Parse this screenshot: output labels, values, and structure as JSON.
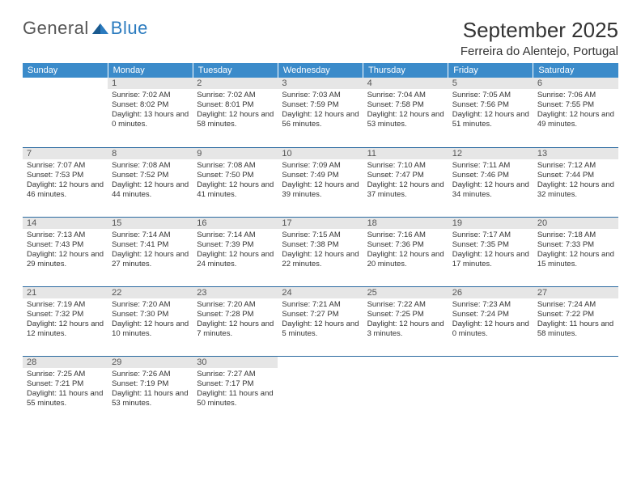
{
  "logo_text_1": "General",
  "logo_text_2": "Blue",
  "logo_triangle_color": "#2b7bbf",
  "month_title": "September 2025",
  "location": "Ferreira do Alentejo, Portugal",
  "dayheaders": {
    "bg_color": "#3b8bca",
    "text_color": "#ffffff",
    "labels": [
      "Sunday",
      "Monday",
      "Tuesday",
      "Wednesday",
      "Thursday",
      "Friday",
      "Saturday"
    ]
  },
  "grid_border_color": "#2b6aa0",
  "daynum_bg_color": "#e6e6e6",
  "days": [
    {
      "num": "1",
      "sunrise": "Sunrise: 7:02 AM",
      "sunset": "Sunset: 8:02 PM",
      "daylight": "Daylight: 13 hours and 0 minutes."
    },
    {
      "num": "2",
      "sunrise": "Sunrise: 7:02 AM",
      "sunset": "Sunset: 8:01 PM",
      "daylight": "Daylight: 12 hours and 58 minutes."
    },
    {
      "num": "3",
      "sunrise": "Sunrise: 7:03 AM",
      "sunset": "Sunset: 7:59 PM",
      "daylight": "Daylight: 12 hours and 56 minutes."
    },
    {
      "num": "4",
      "sunrise": "Sunrise: 7:04 AM",
      "sunset": "Sunset: 7:58 PM",
      "daylight": "Daylight: 12 hours and 53 minutes."
    },
    {
      "num": "5",
      "sunrise": "Sunrise: 7:05 AM",
      "sunset": "Sunset: 7:56 PM",
      "daylight": "Daylight: 12 hours and 51 minutes."
    },
    {
      "num": "6",
      "sunrise": "Sunrise: 7:06 AM",
      "sunset": "Sunset: 7:55 PM",
      "daylight": "Daylight: 12 hours and 49 minutes."
    },
    {
      "num": "7",
      "sunrise": "Sunrise: 7:07 AM",
      "sunset": "Sunset: 7:53 PM",
      "daylight": "Daylight: 12 hours and 46 minutes."
    },
    {
      "num": "8",
      "sunrise": "Sunrise: 7:08 AM",
      "sunset": "Sunset: 7:52 PM",
      "daylight": "Daylight: 12 hours and 44 minutes."
    },
    {
      "num": "9",
      "sunrise": "Sunrise: 7:08 AM",
      "sunset": "Sunset: 7:50 PM",
      "daylight": "Daylight: 12 hours and 41 minutes."
    },
    {
      "num": "10",
      "sunrise": "Sunrise: 7:09 AM",
      "sunset": "Sunset: 7:49 PM",
      "daylight": "Daylight: 12 hours and 39 minutes."
    },
    {
      "num": "11",
      "sunrise": "Sunrise: 7:10 AM",
      "sunset": "Sunset: 7:47 PM",
      "daylight": "Daylight: 12 hours and 37 minutes."
    },
    {
      "num": "12",
      "sunrise": "Sunrise: 7:11 AM",
      "sunset": "Sunset: 7:46 PM",
      "daylight": "Daylight: 12 hours and 34 minutes."
    },
    {
      "num": "13",
      "sunrise": "Sunrise: 7:12 AM",
      "sunset": "Sunset: 7:44 PM",
      "daylight": "Daylight: 12 hours and 32 minutes."
    },
    {
      "num": "14",
      "sunrise": "Sunrise: 7:13 AM",
      "sunset": "Sunset: 7:43 PM",
      "daylight": "Daylight: 12 hours and 29 minutes."
    },
    {
      "num": "15",
      "sunrise": "Sunrise: 7:14 AM",
      "sunset": "Sunset: 7:41 PM",
      "daylight": "Daylight: 12 hours and 27 minutes."
    },
    {
      "num": "16",
      "sunrise": "Sunrise: 7:14 AM",
      "sunset": "Sunset: 7:39 PM",
      "daylight": "Daylight: 12 hours and 24 minutes."
    },
    {
      "num": "17",
      "sunrise": "Sunrise: 7:15 AM",
      "sunset": "Sunset: 7:38 PM",
      "daylight": "Daylight: 12 hours and 22 minutes."
    },
    {
      "num": "18",
      "sunrise": "Sunrise: 7:16 AM",
      "sunset": "Sunset: 7:36 PM",
      "daylight": "Daylight: 12 hours and 20 minutes."
    },
    {
      "num": "19",
      "sunrise": "Sunrise: 7:17 AM",
      "sunset": "Sunset: 7:35 PM",
      "daylight": "Daylight: 12 hours and 17 minutes."
    },
    {
      "num": "20",
      "sunrise": "Sunrise: 7:18 AM",
      "sunset": "Sunset: 7:33 PM",
      "daylight": "Daylight: 12 hours and 15 minutes."
    },
    {
      "num": "21",
      "sunrise": "Sunrise: 7:19 AM",
      "sunset": "Sunset: 7:32 PM",
      "daylight": "Daylight: 12 hours and 12 minutes."
    },
    {
      "num": "22",
      "sunrise": "Sunrise: 7:20 AM",
      "sunset": "Sunset: 7:30 PM",
      "daylight": "Daylight: 12 hours and 10 minutes."
    },
    {
      "num": "23",
      "sunrise": "Sunrise: 7:20 AM",
      "sunset": "Sunset: 7:28 PM",
      "daylight": "Daylight: 12 hours and 7 minutes."
    },
    {
      "num": "24",
      "sunrise": "Sunrise: 7:21 AM",
      "sunset": "Sunset: 7:27 PM",
      "daylight": "Daylight: 12 hours and 5 minutes."
    },
    {
      "num": "25",
      "sunrise": "Sunrise: 7:22 AM",
      "sunset": "Sunset: 7:25 PM",
      "daylight": "Daylight: 12 hours and 3 minutes."
    },
    {
      "num": "26",
      "sunrise": "Sunrise: 7:23 AM",
      "sunset": "Sunset: 7:24 PM",
      "daylight": "Daylight: 12 hours and 0 minutes."
    },
    {
      "num": "27",
      "sunrise": "Sunrise: 7:24 AM",
      "sunset": "Sunset: 7:22 PM",
      "daylight": "Daylight: 11 hours and 58 minutes."
    },
    {
      "num": "28",
      "sunrise": "Sunrise: 7:25 AM",
      "sunset": "Sunset: 7:21 PM",
      "daylight": "Daylight: 11 hours and 55 minutes."
    },
    {
      "num": "29",
      "sunrise": "Sunrise: 7:26 AM",
      "sunset": "Sunset: 7:19 PM",
      "daylight": "Daylight: 11 hours and 53 minutes."
    },
    {
      "num": "30",
      "sunrise": "Sunrise: 7:27 AM",
      "sunset": "Sunset: 7:17 PM",
      "daylight": "Daylight: 11 hours and 50 minutes."
    }
  ],
  "leading_blanks": 1,
  "trailing_blanks": 4
}
